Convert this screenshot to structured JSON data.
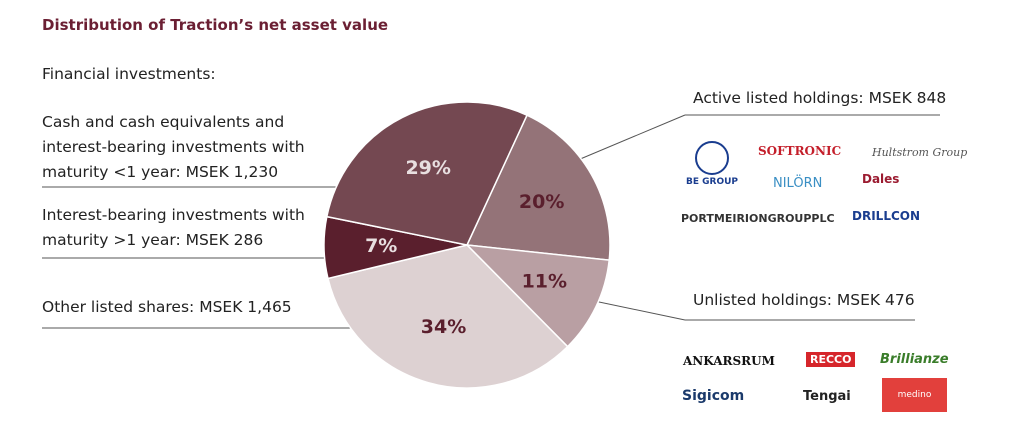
{
  "chart_data": {
    "type": "pie",
    "title": "Distribution of Traction’s net asset value",
    "heading": "Financial investments:",
    "categories": [
      "Active listed holdings: MSEK 848",
      "Unlisted holdings: MSEK 476",
      "Other listed shares: MSEK 1,465",
      "Interest-bearing investments with maturity >1 year: MSEK 286",
      "Cash and cash equivalents and interest-bearing investments with maturity <1 year: MSEK 1,230"
    ],
    "values": [
      20,
      11,
      34,
      7,
      29
    ],
    "value_labels": [
      "20%",
      "11%",
      "34%",
      "7%",
      "29%"
    ],
    "colors": [
      "#947378",
      "#b99fa3",
      "#ddd1d2",
      "#5a1f2d",
      "#744851"
    ],
    "label_colors": [
      "#5a1f2d",
      "#5a1f2d",
      "#5a1f2d",
      "#e8dfe0",
      "#e8dfe0"
    ],
    "active_logos": [
      "BE GROUP",
      "SOFTRONIC",
      "Hultstrom Group",
      "NILÖRN",
      "Dales",
      "PORTMEIRIONGROUPPLC",
      "DRILLCON"
    ],
    "unlisted_logos": [
      "ANKARSRUM",
      "RECCO",
      "Brillianze",
      "Sigicom",
      "Tengai",
      "medino"
    ]
  }
}
